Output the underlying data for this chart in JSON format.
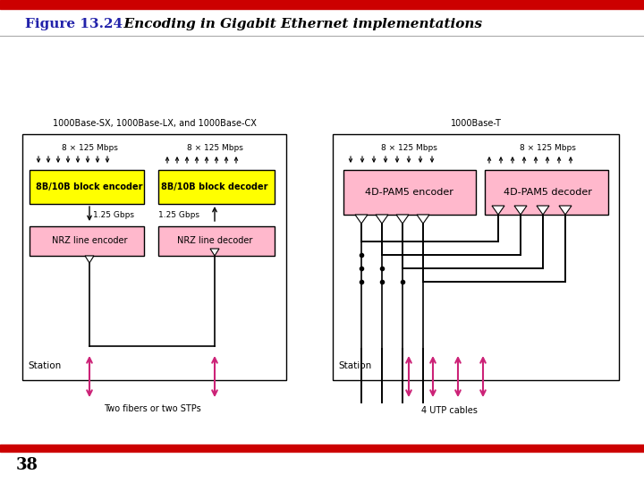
{
  "title_bold": "Figure 13.24",
  "title_italic": "  Encoding in Gigabit Ethernet implementations",
  "page_number": "38",
  "top_bar_color": "#cc0000",
  "bottom_bar_color": "#cc0000",
  "title_bold_color": "#2222aa",
  "bg_color": "#ffffff",
  "yellow": "#ffff00",
  "pink": "#ffb8cc",
  "pink_arrow": "#cc2277",
  "left_panel_title": "1000Base-SX, 1000Base-LX, and 1000Base-CX",
  "right_panel_title": "1000Base-T",
  "left_enc_label": "8B/10B block encoder",
  "left_dec_label": "8B/10B block decoder",
  "right_enc_label": "4D-PAM5 encoder",
  "right_dec_label": "4D-PAM5 decoder",
  "left_nrz_enc": "NRZ line encoder",
  "left_nrz_dec": "NRZ line decoder",
  "speed_8x125": "8 × 125 Mbps",
  "speed_125_gbps": "1.25 Gbps",
  "station_label": "Station",
  "two_fibers": "Two fibers or two STPs",
  "four_utp": "4 UTP cables"
}
